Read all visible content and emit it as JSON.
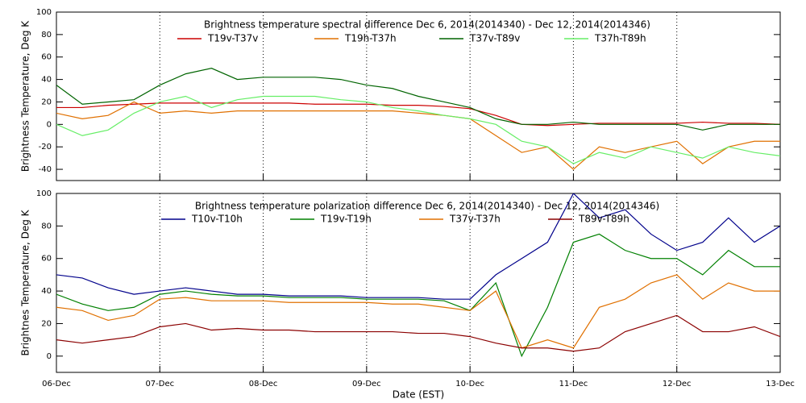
{
  "chart_data": [
    {
      "type": "line",
      "title": "Brightness temperature spectral difference    Dec  6, 2014(2014340) - Dec 12, 2014(2014346)",
      "y_label": "Brightness Temperature, Deg K",
      "xlim": [
        0,
        7
      ],
      "ylim": [
        -50,
        100
      ],
      "yticks": [
        -40,
        -20,
        0,
        20,
        40,
        60,
        80,
        100
      ],
      "grid": true,
      "x": [
        0,
        0.25,
        0.5,
        0.75,
        1,
        1.25,
        1.5,
        1.75,
        2,
        2.25,
        2.5,
        2.75,
        3,
        3.25,
        3.5,
        3.75,
        4,
        4.25,
        4.5,
        4.75,
        5,
        5.25,
        5.5,
        5.75,
        6,
        6.25,
        6.5,
        6.75,
        7
      ],
      "series": [
        {
          "name": "T19v-T37v",
          "color": "#cc0000",
          "values": [
            15,
            15,
            17,
            18,
            19,
            19,
            19,
            19,
            19,
            19,
            18,
            18,
            18,
            17,
            17,
            16,
            14,
            8,
            0,
            -1,
            0,
            1,
            1,
            1,
            1,
            2,
            1,
            1,
            0
          ]
        },
        {
          "name": "T19h-T37h",
          "color": "#e07000",
          "values": [
            10,
            5,
            8,
            20,
            10,
            12,
            10,
            12,
            12,
            12,
            12,
            12,
            12,
            12,
            10,
            8,
            5,
            -10,
            -25,
            -20,
            -40,
            -20,
            -25,
            -20,
            -15,
            -35,
            -20,
            -15,
            -15
          ]
        },
        {
          "name": "T37v-T89v",
          "color": "#006400",
          "values": [
            35,
            18,
            20,
            22,
            35,
            45,
            50,
            40,
            42,
            42,
            42,
            40,
            35,
            32,
            25,
            20,
            15,
            5,
            0,
            0,
            2,
            0,
            0,
            0,
            0,
            -5,
            0,
            0,
            0
          ]
        },
        {
          "name": "T37h-T89h",
          "color": "#66ee66",
          "values": [
            0,
            -10,
            -5,
            10,
            20,
            25,
            15,
            22,
            25,
            25,
            25,
            22,
            20,
            15,
            12,
            8,
            5,
            0,
            -15,
            -20,
            -35,
            -25,
            -30,
            -20,
            -25,
            -30,
            -20,
            -25,
            -28
          ]
        }
      ]
    },
    {
      "type": "line",
      "title": "Brightness temperature polarization difference    Dec  6, 2014(2014340) - Dec 12, 2014(2014346)",
      "y_label": "Brightnes Temperature, Deg K",
      "x_label": "Date (EST)",
      "xlim": [
        0,
        7
      ],
      "ylim": [
        -10,
        100
      ],
      "yticks": [
        0,
        20,
        40,
        60,
        80,
        100
      ],
      "grid": true,
      "xticks": [
        {
          "value": 0,
          "label": "06-Dec"
        },
        {
          "value": 1,
          "label": "07-Dec"
        },
        {
          "value": 2,
          "label": "08-Dec"
        },
        {
          "value": 3,
          "label": "09-Dec"
        },
        {
          "value": 4,
          "label": "10-Dec"
        },
        {
          "value": 5,
          "label": "11-Dec"
        },
        {
          "value": 6,
          "label": "12-Dec"
        },
        {
          "value": 7,
          "label": "13-Dec"
        }
      ],
      "x": [
        0,
        0.25,
        0.5,
        0.75,
        1,
        1.25,
        1.5,
        1.75,
        2,
        2.25,
        2.5,
        2.75,
        3,
        3.25,
        3.5,
        3.75,
        4,
        4.25,
        4.5,
        4.75,
        5,
        5.25,
        5.5,
        5.75,
        6,
        6.25,
        6.5,
        6.75,
        7
      ],
      "series": [
        {
          "name": "T10v-T10h",
          "color": "#00008b",
          "values": [
            50,
            48,
            42,
            38,
            40,
            42,
            40,
            38,
            38,
            37,
            37,
            37,
            36,
            36,
            36,
            35,
            35,
            50,
            60,
            70,
            100,
            85,
            90,
            75,
            65,
            70,
            85,
            70,
            80
          ]
        },
        {
          "name": "T19v-T19h",
          "color": "#008000",
          "values": [
            38,
            32,
            28,
            30,
            38,
            40,
            38,
            37,
            37,
            36,
            36,
            36,
            35,
            35,
            35,
            34,
            28,
            45,
            0,
            30,
            70,
            75,
            65,
            60,
            60,
            50,
            65,
            55,
            55
          ]
        },
        {
          "name": "T37v-T37h",
          "color": "#e07000",
          "values": [
            30,
            28,
            22,
            25,
            35,
            36,
            34,
            34,
            34,
            33,
            33,
            33,
            33,
            32,
            32,
            30,
            28,
            40,
            5,
            10,
            5,
            30,
            35,
            45,
            50,
            35,
            45,
            40,
            40
          ]
        },
        {
          "name": "T89v-T89h",
          "color": "#8b0000",
          "values": [
            10,
            8,
            10,
            12,
            18,
            20,
            16,
            17,
            16,
            16,
            15,
            15,
            15,
            15,
            14,
            14,
            12,
            8,
            5,
            5,
            3,
            5,
            15,
            20,
            25,
            15,
            15,
            18,
            12
          ]
        }
      ]
    }
  ]
}
